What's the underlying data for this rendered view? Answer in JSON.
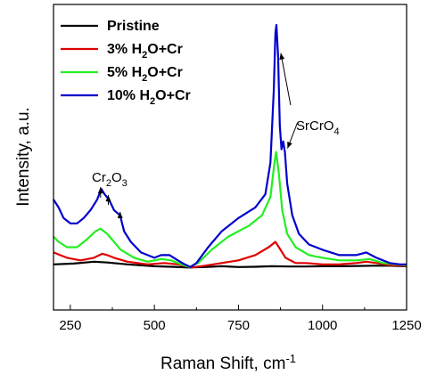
{
  "chart_data": {
    "type": "line",
    "xlabel": "Raman Shift, cm",
    "xlabel_sup": "-1",
    "ylabel": "Intensity, a.u.",
    "xlim": [
      200,
      1250
    ],
    "ylim": [
      0,
      1
    ],
    "x_ticks": [
      250,
      500,
      750,
      1000,
      1250
    ],
    "grid": false,
    "legend_position": "top-left",
    "series": [
      {
        "name": "Pristine",
        "name_parts": [
          "Pristine",
          "",
          ""
        ],
        "color": "#000000",
        "points": [
          [
            200,
            0.095
          ],
          [
            260,
            0.098
          ],
          [
            320,
            0.105
          ],
          [
            360,
            0.102
          ],
          [
            420,
            0.095
          ],
          [
            500,
            0.088
          ],
          [
            550,
            0.086
          ],
          [
            600,
            0.083
          ],
          [
            650,
            0.085
          ],
          [
            700,
            0.088
          ],
          [
            750,
            0.085
          ],
          [
            800,
            0.086
          ],
          [
            850,
            0.088
          ],
          [
            900,
            0.087
          ],
          [
            950,
            0.087
          ],
          [
            1000,
            0.088
          ],
          [
            1050,
            0.088
          ],
          [
            1100,
            0.089
          ],
          [
            1150,
            0.09
          ],
          [
            1200,
            0.09
          ],
          [
            1250,
            0.088
          ]
        ]
      },
      {
        "name": "3% H2O+Cr",
        "name_parts": [
          "3% H",
          "2",
          "O+Cr"
        ],
        "color": "#e00000",
        "points": [
          [
            200,
            0.14
          ],
          [
            240,
            0.12
          ],
          [
            280,
            0.11
          ],
          [
            320,
            0.12
          ],
          [
            345,
            0.135
          ],
          [
            360,
            0.13
          ],
          [
            380,
            0.12
          ],
          [
            420,
            0.105
          ],
          [
            480,
            0.095
          ],
          [
            530,
            0.1
          ],
          [
            570,
            0.095
          ],
          [
            610,
            0.083
          ],
          [
            650,
            0.09
          ],
          [
            700,
            0.1
          ],
          [
            750,
            0.11
          ],
          [
            800,
            0.13
          ],
          [
            840,
            0.16
          ],
          [
            860,
            0.18
          ],
          [
            875,
            0.15
          ],
          [
            890,
            0.12
          ],
          [
            920,
            0.1
          ],
          [
            950,
            0.1
          ],
          [
            1000,
            0.095
          ],
          [
            1050,
            0.095
          ],
          [
            1100,
            0.1
          ],
          [
            1130,
            0.105
          ],
          [
            1160,
            0.1
          ],
          [
            1200,
            0.092
          ],
          [
            1250,
            0.09
          ]
        ]
      },
      {
        "name": "5% H2O+Cr",
        "name_parts": [
          "5% H",
          "2",
          "O+Cr"
        ],
        "color": "#22ee22",
        "points": [
          [
            200,
            0.2
          ],
          [
            215,
            0.18
          ],
          [
            240,
            0.16
          ],
          [
            270,
            0.16
          ],
          [
            300,
            0.19
          ],
          [
            325,
            0.22
          ],
          [
            340,
            0.23
          ],
          [
            360,
            0.21
          ],
          [
            380,
            0.18
          ],
          [
            400,
            0.15
          ],
          [
            440,
            0.12
          ],
          [
            480,
            0.105
          ],
          [
            520,
            0.115
          ],
          [
            550,
            0.11
          ],
          [
            580,
            0.095
          ],
          [
            605,
            0.085
          ],
          [
            630,
            0.1
          ],
          [
            670,
            0.15
          ],
          [
            720,
            0.2
          ],
          [
            780,
            0.24
          ],
          [
            820,
            0.28
          ],
          [
            845,
            0.35
          ],
          [
            857,
            0.48
          ],
          [
            862,
            0.52
          ],
          [
            870,
            0.44
          ],
          [
            880,
            0.3
          ],
          [
            895,
            0.21
          ],
          [
            920,
            0.16
          ],
          [
            960,
            0.13
          ],
          [
            1000,
            0.12
          ],
          [
            1050,
            0.11
          ],
          [
            1100,
            0.11
          ],
          [
            1140,
            0.115
          ],
          [
            1180,
            0.1
          ],
          [
            1220,
            0.095
          ],
          [
            1250,
            0.092
          ]
        ]
      },
      {
        "name": "10% H2O+Cr",
        "name_parts": [
          "10% H",
          "2",
          "O+Cr"
        ],
        "color": "#0000cc",
        "points": [
          [
            200,
            0.34
          ],
          [
            215,
            0.31
          ],
          [
            230,
            0.27
          ],
          [
            250,
            0.25
          ],
          [
            270,
            0.25
          ],
          [
            290,
            0.27
          ],
          [
            310,
            0.3
          ],
          [
            330,
            0.34
          ],
          [
            342,
            0.38
          ],
          [
            352,
            0.36
          ],
          [
            365,
            0.34
          ],
          [
            380,
            0.3
          ],
          [
            398,
            0.28
          ],
          [
            410,
            0.22
          ],
          [
            430,
            0.18
          ],
          [
            460,
            0.14
          ],
          [
            500,
            0.12
          ],
          [
            520,
            0.13
          ],
          [
            545,
            0.13
          ],
          [
            570,
            0.11
          ],
          [
            590,
            0.095
          ],
          [
            607,
            0.085
          ],
          [
            625,
            0.1
          ],
          [
            660,
            0.16
          ],
          [
            700,
            0.22
          ],
          [
            750,
            0.27
          ],
          [
            800,
            0.31
          ],
          [
            830,
            0.36
          ],
          [
            845,
            0.48
          ],
          [
            855,
            0.75
          ],
          [
            860,
            0.97
          ],
          [
            863,
            1.0
          ],
          [
            868,
            0.88
          ],
          [
            873,
            0.62
          ],
          [
            878,
            0.53
          ],
          [
            883,
            0.56
          ],
          [
            888,
            0.52
          ],
          [
            895,
            0.4
          ],
          [
            910,
            0.28
          ],
          [
            930,
            0.21
          ],
          [
            960,
            0.17
          ],
          [
            1000,
            0.15
          ],
          [
            1050,
            0.13
          ],
          [
            1100,
            0.13
          ],
          [
            1130,
            0.14
          ],
          [
            1160,
            0.12
          ],
          [
            1200,
            0.1
          ],
          [
            1230,
            0.095
          ],
          [
            1250,
            0.095
          ]
        ]
      }
    ],
    "annotations": [
      {
        "id": "cr2o3",
        "parts": [
          "Cr",
          "2",
          "O",
          "3",
          "",
          ""
        ],
        "arrows_at": [
          340,
          363,
          398
        ]
      },
      {
        "id": "srcro4",
        "parts": [
          "SrCrO",
          "4",
          "",
          "",
          "",
          ""
        ],
        "arrows_at": [
          868,
          888
        ]
      }
    ]
  }
}
